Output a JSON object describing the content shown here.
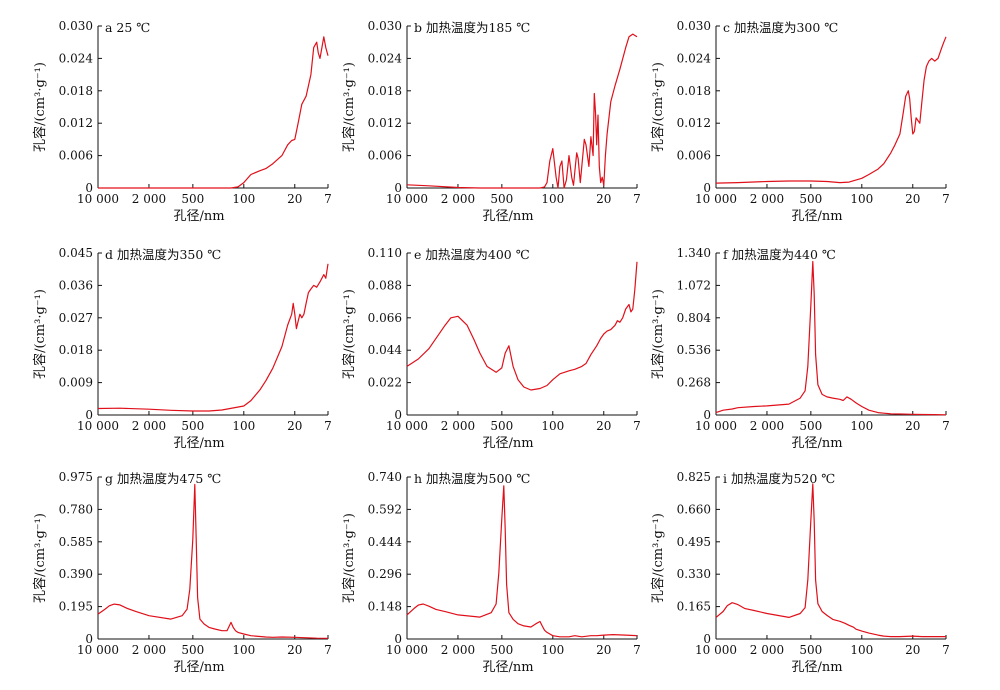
{
  "figure": {
    "background": "#ffffff",
    "line_color": "#e0101a"
  },
  "chart_data": [
    {
      "type": "line",
      "title": "a 25 ℃",
      "ylabel": "孔容/(cm³·g⁻¹)",
      "xlabel": "孔径/nm",
      "xtick_labels": [
        "10 000",
        "2 000",
        "500",
        "100",
        "20",
        "7"
      ],
      "yticks": [
        "0",
        "0.006",
        "0.012",
        "0.018",
        "0.024",
        "0.030"
      ],
      "ylim": [
        0,
        0.03
      ],
      "x_scale": "log",
      "x_direction": "decreasing",
      "series": [
        {
          "x": [
            10000,
            5000,
            2000,
            1000,
            500,
            300,
            200,
            150,
            120,
            100,
            80,
            60,
            50,
            40,
            30,
            25,
            22,
            20,
            18,
            16,
            14,
            12,
            11,
            10,
            9.5,
            9,
            8.5,
            8,
            7.5,
            7
          ],
          "y": [
            0,
            0,
            0,
            0,
            0,
            0,
            0,
            0,
            0.0002,
            0.001,
            0.0025,
            0.0032,
            0.0036,
            0.0045,
            0.006,
            0.008,
            0.0088,
            0.009,
            0.012,
            0.0155,
            0.017,
            0.021,
            0.026,
            0.027,
            0.025,
            0.024,
            0.026,
            0.028,
            0.026,
            0.0245
          ]
        }
      ]
    },
    {
      "type": "line",
      "title": "b 加热温度为185 ℃",
      "ylabel": "孔容/(cm³·g⁻¹)",
      "xlabel": "孔径/nm",
      "xtick_labels": [
        "10 000",
        "2 000",
        "500",
        "100",
        "20",
        "7"
      ],
      "yticks": [
        "0",
        "0.006",
        "0.012",
        "0.018",
        "0.024",
        "0.030"
      ],
      "ylim": [
        0,
        0.03
      ],
      "x_scale": "log",
      "x_direction": "decreasing",
      "series": [
        {
          "x": [
            10000,
            5000,
            2000,
            1000,
            500,
            300,
            200,
            150,
            130,
            120,
            110,
            100,
            90,
            85,
            80,
            75,
            70,
            65,
            60,
            55,
            52,
            50,
            47,
            45,
            42,
            40,
            37,
            35,
            32,
            30,
            28,
            27,
            26,
            25,
            24,
            23,
            22,
            21,
            20,
            19,
            18,
            16,
            14,
            12,
            10,
            9,
            8,
            7
          ],
          "y": [
            0.0006,
            0.0004,
            0.0001,
            0,
            0,
            0,
            0,
            0,
            0.0002,
            0.001,
            0.005,
            0.0073,
            0.002,
            0,
            0.004,
            0.005,
            0,
            0.0015,
            0.006,
            0.002,
            0.0005,
            0.003,
            0.0065,
            0.0055,
            0.001,
            0.004,
            0.009,
            0.008,
            0.004,
            0.0095,
            0.006,
            0.0175,
            0.014,
            0.008,
            0.0135,
            0.004,
            0.001,
            0.002,
            0.0005,
            0.006,
            0.01,
            0.016,
            0.019,
            0.022,
            0.026,
            0.028,
            0.0285,
            0.028
          ]
        }
      ]
    },
    {
      "type": "line",
      "title": "c  加热温度为300 ℃",
      "ylabel": "孔容/(cm³·g⁻¹)",
      "xlabel": "孔径/nm",
      "xtick_labels": [
        "10 000",
        "2 000",
        "500",
        "100",
        "20",
        "7"
      ],
      "yticks": [
        "0",
        "0.006",
        "0.012",
        "0.018",
        "0.024",
        "0.030"
      ],
      "ylim": [
        0,
        0.03
      ],
      "x_scale": "log",
      "x_direction": "decreasing",
      "series": [
        {
          "x": [
            10000,
            5000,
            2000,
            1000,
            500,
            300,
            200,
            150,
            100,
            80,
            60,
            50,
            40,
            35,
            30,
            27,
            25,
            23,
            22,
            21,
            20,
            19,
            18,
            17,
            16,
            15,
            14,
            13,
            12,
            11,
            10,
            9,
            8,
            7.5,
            7
          ],
          "y": [
            0.0009,
            0.001,
            0.0012,
            0.0013,
            0.0013,
            0.0012,
            0.001,
            0.0011,
            0.0018,
            0.0025,
            0.0035,
            0.0045,
            0.0065,
            0.008,
            0.01,
            0.014,
            0.017,
            0.018,
            0.0165,
            0.013,
            0.01,
            0.0105,
            0.013,
            0.0125,
            0.012,
            0.016,
            0.02,
            0.0225,
            0.0235,
            0.024,
            0.0235,
            0.024,
            0.026,
            0.027,
            0.028
          ]
        }
      ]
    },
    {
      "type": "line",
      "title": "d 加热温度为350 ℃",
      "ylabel": "孔容/(cm³·g⁻¹)",
      "xlabel": "孔径/nm",
      "xtick_labels": [
        "10 000",
        "2 000",
        "500",
        "100",
        "20",
        "7"
      ],
      "yticks": [
        "0",
        "0.009",
        "0.018",
        "0.027",
        "0.036",
        "0.045"
      ],
      "ylim": [
        0,
        0.045
      ],
      "x_scale": "log",
      "x_direction": "decreasing",
      "series": [
        {
          "x": [
            10000,
            5000,
            2000,
            1000,
            500,
            300,
            200,
            100,
            80,
            60,
            50,
            40,
            30,
            25,
            22,
            21,
            20,
            19,
            18,
            17,
            16,
            15,
            14,
            13,
            12,
            11,
            10,
            9,
            8,
            7.5,
            7
          ],
          "y": [
            0.0018,
            0.0019,
            0.0016,
            0.0013,
            0.0011,
            0.0011,
            0.0014,
            0.0025,
            0.004,
            0.007,
            0.0095,
            0.013,
            0.019,
            0.025,
            0.028,
            0.031,
            0.028,
            0.024,
            0.026,
            0.028,
            0.027,
            0.028,
            0.031,
            0.034,
            0.035,
            0.036,
            0.0355,
            0.037,
            0.039,
            0.038,
            0.042
          ]
        }
      ]
    },
    {
      "type": "line",
      "title": "e 加热温度为400 ℃",
      "ylabel": "孔容/(cm³·g⁻¹)",
      "xlabel": "孔径/nm",
      "xtick_labels": [
        "10 000",
        "2 000",
        "500",
        "100",
        "20",
        "7"
      ],
      "yticks": [
        "0",
        "0.022",
        "0.044",
        "0.066",
        "0.088",
        "0.110"
      ],
      "ylim": [
        0,
        0.11
      ],
      "x_scale": "log",
      "x_direction": "decreasing",
      "series": [
        {
          "x": [
            10000,
            7000,
            5000,
            3000,
            2500,
            2000,
            1500,
            1200,
            1000,
            800,
            600,
            500,
            450,
            400,
            350,
            300,
            250,
            200,
            150,
            120,
            100,
            80,
            60,
            50,
            40,
            35,
            30,
            25,
            22,
            20,
            18,
            16,
            14,
            13,
            12,
            11,
            10,
            9,
            8.5,
            8,
            7.5,
            7
          ],
          "y": [
            0.033,
            0.038,
            0.045,
            0.061,
            0.066,
            0.067,
            0.061,
            0.051,
            0.042,
            0.033,
            0.029,
            0.032,
            0.042,
            0.047,
            0.033,
            0.024,
            0.019,
            0.017,
            0.018,
            0.02,
            0.024,
            0.028,
            0.03,
            0.031,
            0.033,
            0.035,
            0.041,
            0.047,
            0.052,
            0.055,
            0.057,
            0.058,
            0.061,
            0.064,
            0.063,
            0.066,
            0.072,
            0.075,
            0.07,
            0.072,
            0.085,
            0.104
          ]
        }
      ]
    },
    {
      "type": "line",
      "title": "f 加热温度为440 ℃",
      "ylabel": "孔容/(cm³·g⁻¹)",
      "xlabel": "孔径/nm",
      "xtick_labels": [
        "10 000",
        "2 000",
        "500",
        "100",
        "20",
        "7"
      ],
      "yticks": [
        "0",
        "0.268",
        "0.536",
        "0.804",
        "1.072",
        "1.340"
      ],
      "ylim": [
        0,
        1.34
      ],
      "x_scale": "log",
      "x_direction": "decreasing",
      "series": [
        {
          "x": [
            10000,
            8000,
            6000,
            5000,
            3000,
            2000,
            1000,
            700,
            600,
            550,
            500,
            470,
            450,
            430,
            400,
            350,
            300,
            250,
            200,
            180,
            160,
            140,
            120,
            100,
            80,
            60,
            50,
            40,
            30,
            20,
            15,
            10,
            7
          ],
          "y": [
            0.02,
            0.04,
            0.05,
            0.06,
            0.07,
            0.075,
            0.09,
            0.14,
            0.2,
            0.4,
            0.9,
            1.27,
            1.0,
            0.5,
            0.25,
            0.17,
            0.15,
            0.14,
            0.13,
            0.12,
            0.15,
            0.13,
            0.1,
            0.07,
            0.04,
            0.02,
            0.015,
            0.01,
            0.008,
            0.006,
            0.004,
            0.003,
            0.002
          ]
        }
      ]
    },
    {
      "type": "line",
      "title": "g  加热温度为475 ℃",
      "ylabel": "孔容/(cm³·g⁻¹)",
      "xlabel": "孔径/nm",
      "xtick_labels": [
        "10 000",
        "2 000",
        "500",
        "100",
        "20",
        "7"
      ],
      "yticks": [
        "0",
        "0.195",
        "0.390",
        "0.585",
        "0.780",
        "0.975"
      ],
      "ylim": [
        0,
        0.975
      ],
      "x_scale": "log",
      "x_direction": "decreasing",
      "series": [
        {
          "x": [
            10000,
            8000,
            7000,
            6000,
            5000,
            4000,
            3000,
            2000,
            1000,
            700,
            600,
            550,
            500,
            470,
            450,
            430,
            400,
            350,
            300,
            250,
            200,
            170,
            150,
            140,
            130,
            120,
            100,
            80,
            60,
            50,
            40,
            30,
            20,
            15,
            10,
            7
          ],
          "y": [
            0.15,
            0.18,
            0.2,
            0.21,
            0.205,
            0.185,
            0.165,
            0.14,
            0.12,
            0.14,
            0.18,
            0.3,
            0.6,
            0.93,
            0.6,
            0.25,
            0.12,
            0.09,
            0.07,
            0.06,
            0.05,
            0.05,
            0.1,
            0.07,
            0.05,
            0.04,
            0.03,
            0.02,
            0.015,
            0.012,
            0.01,
            0.012,
            0.01,
            0.008,
            0.005,
            0.004
          ]
        }
      ]
    },
    {
      "type": "line",
      "title": "h  加热温度为500 ℃",
      "ylabel": "孔容/(cm³·g⁻¹)",
      "xlabel": "孔径/nm",
      "xtick_labels": [
        "10 000",
        "2 000",
        "500",
        "100",
        "20",
        "7"
      ],
      "yticks": [
        "0",
        "0.148",
        "0.296",
        "0.444",
        "0.592",
        "0.740"
      ],
      "ylim": [
        0,
        0.74
      ],
      "x_scale": "log",
      "x_direction": "decreasing",
      "series": [
        {
          "x": [
            10000,
            8000,
            7000,
            6000,
            5000,
            4000,
            3000,
            2000,
            1000,
            700,
            600,
            550,
            500,
            470,
            450,
            430,
            400,
            350,
            300,
            250,
            200,
            170,
            150,
            140,
            130,
            120,
            100,
            80,
            60,
            50,
            40,
            30,
            25,
            20,
            15,
            10,
            7
          ],
          "y": [
            0.11,
            0.14,
            0.155,
            0.16,
            0.15,
            0.135,
            0.125,
            0.11,
            0.1,
            0.12,
            0.16,
            0.3,
            0.55,
            0.7,
            0.5,
            0.25,
            0.12,
            0.09,
            0.07,
            0.06,
            0.055,
            0.07,
            0.08,
            0.06,
            0.04,
            0.03,
            0.015,
            0.01,
            0.01,
            0.015,
            0.01,
            0.015,
            0.015,
            0.018,
            0.02,
            0.018,
            0.015
          ]
        }
      ]
    },
    {
      "type": "line",
      "title": "i 加热温度为520 ℃",
      "ylabel": "孔容/(cm³·g⁻¹)",
      "xlabel": "孔径/nm",
      "xtick_labels": [
        "10 000",
        "2 000",
        "500",
        "100",
        "20",
        "7"
      ],
      "yticks": [
        "0",
        "0.165",
        "0.330",
        "0.495",
        "0.660",
        "0.825"
      ],
      "ylim": [
        0,
        0.825
      ],
      "x_scale": "log",
      "x_direction": "decreasing",
      "series": [
        {
          "x": [
            10000,
            8000,
            7000,
            6000,
            5000,
            4000,
            3000,
            2000,
            1000,
            700,
            600,
            550,
            500,
            470,
            450,
            430,
            400,
            350,
            300,
            250,
            200,
            170,
            150,
            130,
            120,
            100,
            80,
            60,
            50,
            40,
            30,
            20,
            15,
            10,
            7
          ],
          "y": [
            0.11,
            0.14,
            0.17,
            0.185,
            0.175,
            0.155,
            0.145,
            0.13,
            0.11,
            0.13,
            0.16,
            0.3,
            0.6,
            0.79,
            0.6,
            0.3,
            0.18,
            0.14,
            0.12,
            0.1,
            0.09,
            0.08,
            0.07,
            0.06,
            0.05,
            0.04,
            0.03,
            0.02,
            0.015,
            0.012,
            0.012,
            0.015,
            0.012,
            0.012,
            0.012
          ]
        }
      ]
    }
  ]
}
